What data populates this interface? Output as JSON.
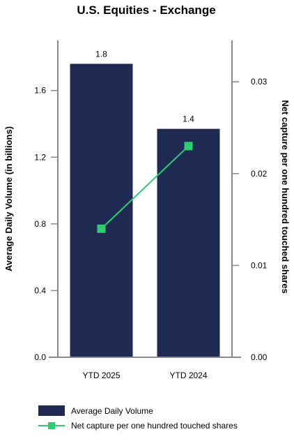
{
  "chart_data": {
    "type": "bar+line",
    "title": "U.S. Equities - Exchange",
    "categories": [
      "YTD 2025",
      "YTD 2024"
    ],
    "series": [
      {
        "name": "Average Daily Volume",
        "type": "bar",
        "axis": "left",
        "values": [
          1.76,
          1.37
        ],
        "data_labels": [
          "1.8",
          "1.4"
        ],
        "color": "#1f2a52"
      },
      {
        "name": "Net capture per one hundred touched shares",
        "type": "line",
        "axis": "right",
        "values": [
          0.014,
          0.023
        ],
        "color": "#2ecc71"
      }
    ],
    "y_left": {
      "label": "Average Daily Volume (in billions)",
      "ylim": [
        0,
        1.9
      ],
      "ticks": [
        0,
        0.4,
        0.8,
        1.2,
        1.6
      ],
      "tick_labels": [
        "0.0",
        "0.4",
        "0.8",
        "1.2",
        "1.6"
      ]
    },
    "y_right": {
      "label": "Net capture per one hundred touched shares",
      "ylim": [
        0,
        0.0345
      ],
      "ticks": [
        0,
        0.01,
        0.02,
        0.03
      ],
      "tick_labels": [
        "0.00",
        "0.01",
        "0.02",
        "0.03"
      ]
    },
    "grid": false,
    "legend_position": "bottom-left"
  }
}
